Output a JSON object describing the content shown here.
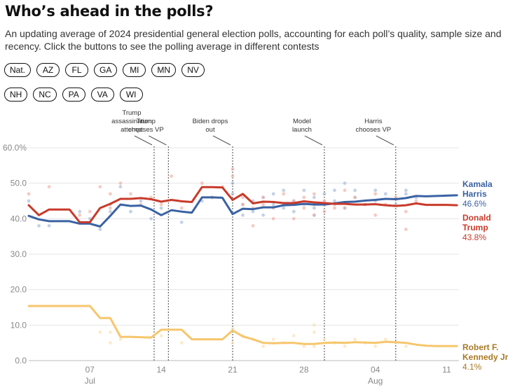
{
  "header": {
    "title": "Who’s ahead in the polls?",
    "subtitle": "An updating average of 2024 presidential general election polls, accounting for each poll’s quality, sample size and recency. Click the buttons to see the polling average in different contests"
  },
  "contests": {
    "row1": [
      "Nat.",
      "AZ",
      "FL",
      "GA",
      "MI",
      "MN",
      "NV"
    ],
    "row2": [
      "NH",
      "NC",
      "PA",
      "VA",
      "WI"
    ]
  },
  "chart_data": {
    "type": "line",
    "title": "",
    "xlabel": "",
    "ylabel": "",
    "x_axis": {
      "ticks": [
        {
          "day": 7,
          "label": "07",
          "sublabel": "Jul"
        },
        {
          "day": 14,
          "label": "14",
          "sublabel": ""
        },
        {
          "day": 21,
          "label": "21",
          "sublabel": ""
        },
        {
          "day": 28,
          "label": "28",
          "sublabel": ""
        },
        {
          "day": 35,
          "label": "04",
          "sublabel": "Aug"
        },
        {
          "day": 42,
          "label": "11",
          "sublabel": ""
        }
      ],
      "range_day_of_july": [
        1,
        43.2
      ]
    },
    "y_axis": {
      "ticks": [
        0,
        10,
        20,
        30,
        40,
        50,
        60
      ],
      "tick_labels": [
        "0.0",
        "10.0",
        "20.0",
        "30.0",
        "40.0",
        "50.0",
        "60.0%"
      ],
      "ylim": [
        0,
        60
      ]
    },
    "grid": true,
    "x_day_of_july": [
      1,
      2,
      3,
      4,
      5,
      6,
      7,
      8,
      9,
      10,
      11,
      12,
      13,
      14,
      15,
      16,
      17,
      18,
      19,
      20,
      21,
      22,
      23,
      24,
      25,
      26,
      27,
      28,
      29,
      30,
      31,
      32,
      33,
      34,
      35,
      36,
      37,
      38,
      39,
      40,
      41,
      42,
      43
    ],
    "series": [
      {
        "name": "Kamala Harris",
        "label_line1": "Kamala",
        "label_line2": "Harris",
        "final_value_label": "46.6%",
        "color": "#3a62a3",
        "point_color": "#9fb3d9",
        "values": [
          40.8,
          39.8,
          39.3,
          39.3,
          39.3,
          38.6,
          38.6,
          37.8,
          40.8,
          44.0,
          43.6,
          43.7,
          42.6,
          41.0,
          42.4,
          42.0,
          41.7,
          46.0,
          46.0,
          45.9,
          41.3,
          42.8,
          42.7,
          43.2,
          43.2,
          43.8,
          43.9,
          44.2,
          44.0,
          44.0,
          44.3,
          44.7,
          44.8,
          45.1,
          45.3,
          45.6,
          45.5,
          45.8,
          46.4,
          46.3,
          46.4,
          46.5,
          46.6
        ]
      },
      {
        "name": "Donald Trump",
        "label_line1": "Donald",
        "label_line2": "Trump",
        "final_value_label": "43.8%",
        "color": "#c83a2a",
        "point_color": "#eea79c",
        "values": [
          43.8,
          41.0,
          42.6,
          42.6,
          42.6,
          39.0,
          39.0,
          43.0,
          44.2,
          45.6,
          45.6,
          45.8,
          45.5,
          44.8,
          45.3,
          44.9,
          44.7,
          48.9,
          48.9,
          48.8,
          45.3,
          47.0,
          44.3,
          44.8,
          44.7,
          44.4,
          44.4,
          44.9,
          44.6,
          44.4,
          44.2,
          44.2,
          44.0,
          44.0,
          44.1,
          43.8,
          43.6,
          43.8,
          44.3,
          43.9,
          43.9,
          43.9,
          43.8
        ]
      },
      {
        "name": "Robert F. Kennedy Jr.",
        "label_line1": "Robert F.",
        "label_line2": "Kennedy Jr.",
        "final_value_label": "4.1%",
        "color": "#f6c66c",
        "point_color": "#f9dfa8",
        "label_color": "#a87a24",
        "values": [
          15.4,
          15.4,
          15.4,
          15.4,
          15.4,
          15.4,
          15.4,
          12.0,
          12.0,
          6.7,
          6.7,
          6.6,
          6.5,
          8.7,
          8.7,
          8.7,
          6.0,
          6.0,
          6.0,
          6.0,
          8.5,
          6.8,
          6.0,
          5.0,
          4.9,
          5.0,
          5.0,
          4.7,
          4.7,
          5.0,
          5.1,
          5.0,
          5.2,
          5.1,
          5.0,
          5.3,
          5.2,
          5.0,
          4.5,
          4.2,
          4.1,
          4.1,
          4.1
        ]
      }
    ],
    "poll_points": {
      "Kamala Harris": [
        [
          1,
          45
        ],
        [
          2,
          38
        ],
        [
          3,
          38
        ],
        [
          6,
          42
        ],
        [
          7,
          40
        ],
        [
          8,
          37
        ],
        [
          9,
          42
        ],
        [
          9,
          44
        ],
        [
          10,
          49
        ],
        [
          11,
          42
        ],
        [
          12,
          45
        ],
        [
          13,
          40
        ],
        [
          14,
          43
        ],
        [
          16,
          39
        ],
        [
          18,
          45
        ],
        [
          19,
          46
        ],
        [
          21,
          47
        ],
        [
          21,
          50
        ],
        [
          22,
          41
        ],
        [
          22,
          44
        ],
        [
          23,
          42
        ],
        [
          23,
          45
        ],
        [
          24,
          41
        ],
        [
          24,
          46
        ],
        [
          25,
          44
        ],
        [
          25,
          47
        ],
        [
          26,
          43
        ],
        [
          26,
          48
        ],
        [
          27,
          45
        ],
        [
          27,
          42
        ],
        [
          28,
          48
        ],
        [
          28,
          44
        ],
        [
          29,
          43
        ],
        [
          29,
          46
        ],
        [
          29,
          41
        ],
        [
          30,
          44
        ],
        [
          30,
          47
        ],
        [
          31,
          45
        ],
        [
          31,
          48
        ],
        [
          32,
          50
        ],
        [
          32,
          43
        ],
        [
          33,
          46
        ],
        [
          33,
          48
        ],
        [
          34,
          44
        ],
        [
          35,
          48
        ],
        [
          35,
          45
        ],
        [
          36,
          47
        ],
        [
          37,
          44
        ],
        [
          38,
          47
        ],
        [
          38,
          48
        ],
        [
          39,
          46
        ]
      ],
      "Donald Trump": [
        [
          1,
          47
        ],
        [
          3,
          49
        ],
        [
          6,
          41
        ],
        [
          7,
          42
        ],
        [
          8,
          49
        ],
        [
          9,
          43
        ],
        [
          9,
          47
        ],
        [
          10,
          50
        ],
        [
          11,
          47
        ],
        [
          12,
          44
        ],
        [
          13,
          46
        ],
        [
          14,
          44
        ],
        [
          15,
          52
        ],
        [
          16,
          43
        ],
        [
          18,
          50
        ],
        [
          19,
          46
        ],
        [
          20,
          49
        ],
        [
          21,
          52
        ],
        [
          21,
          54
        ],
        [
          22,
          46
        ],
        [
          22,
          44
        ],
        [
          23,
          43
        ],
        [
          23,
          38
        ],
        [
          24,
          44
        ],
        [
          24,
          46
        ],
        [
          25,
          40
        ],
        [
          25,
          43
        ],
        [
          26,
          44
        ],
        [
          26,
          47
        ],
        [
          27,
          45
        ],
        [
          27,
          40
        ],
        [
          28,
          43
        ],
        [
          28,
          46
        ],
        [
          29,
          44
        ],
        [
          29,
          41
        ],
        [
          29,
          47
        ],
        [
          30,
          42
        ],
        [
          30,
          45
        ],
        [
          31,
          44
        ],
        [
          31,
          43
        ],
        [
          32,
          48
        ],
        [
          32,
          43
        ],
        [
          33,
          46
        ],
        [
          34,
          44
        ],
        [
          35,
          41
        ],
        [
          35,
          47
        ],
        [
          36,
          44
        ],
        [
          37,
          46
        ],
        [
          38,
          37
        ],
        [
          38,
          42
        ],
        [
          39,
          45
        ]
      ],
      "Robert F. Kennedy Jr.": [
        [
          8,
          8
        ],
        [
          9,
          8
        ],
        [
          9,
          5
        ],
        [
          10,
          6
        ],
        [
          14,
          7
        ],
        [
          16,
          5
        ],
        [
          21,
          5
        ],
        [
          21,
          9
        ],
        [
          22,
          7
        ],
        [
          23,
          6
        ],
        [
          24,
          4
        ],
        [
          25,
          6
        ],
        [
          26,
          5
        ],
        [
          27,
          7
        ],
        [
          28,
          4
        ],
        [
          29,
          8
        ],
        [
          29,
          10
        ],
        [
          29,
          4
        ],
        [
          30,
          6
        ],
        [
          31,
          5
        ],
        [
          32,
          4
        ],
        [
          33,
          6
        ],
        [
          34,
          5
        ],
        [
          35,
          4
        ],
        [
          36,
          6
        ],
        [
          37,
          5
        ],
        [
          38,
          4
        ]
      ]
    },
    "annotations": [
      {
        "day": 13.3,
        "text_lines": [
          "Trump",
          "assassination",
          "attempt"
        ]
      },
      {
        "day": 14.7,
        "text_lines": [
          "Trump",
          "chooses VP"
        ]
      },
      {
        "day": 21.0,
        "text_lines": [
          "Biden drops",
          "out"
        ]
      },
      {
        "day": 30.0,
        "text_lines": [
          "Model",
          "launch"
        ]
      },
      {
        "day": 37.0,
        "text_lines": [
          "Harris",
          "chooses VP"
        ]
      }
    ]
  }
}
